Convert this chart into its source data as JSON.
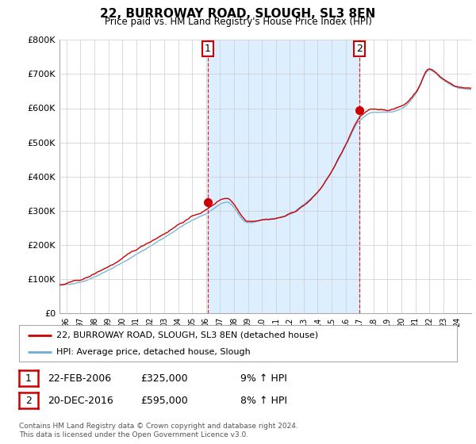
{
  "title": "22, BURROWAY ROAD, SLOUGH, SL3 8EN",
  "subtitle": "Price paid vs. HM Land Registry's House Price Index (HPI)",
  "ylabel_ticks": [
    "£0",
    "£100K",
    "£200K",
    "£300K",
    "£400K",
    "£500K",
    "£600K",
    "£700K",
    "£800K"
  ],
  "ylim": [
    0,
    800000
  ],
  "xlim_start": 1995.5,
  "xlim_end": 2025.0,
  "hpi_color": "#6baed6",
  "price_color": "#cc0000",
  "fill_color": "#ddeeff",
  "marker1_x": 2006.12,
  "marker1_y": 325000,
  "marker2_x": 2016.97,
  "marker2_y": 595000,
  "legend_line1": "22, BURROWAY ROAD, SLOUGH, SL3 8EN (detached house)",
  "legend_line2": "HPI: Average price, detached house, Slough",
  "annotation1_date": "22-FEB-2006",
  "annotation1_price": "£325,000",
  "annotation1_hpi": "9% ↑ HPI",
  "annotation2_date": "20-DEC-2016",
  "annotation2_price": "£595,000",
  "annotation2_hpi": "8% ↑ HPI",
  "footer": "Contains HM Land Registry data © Crown copyright and database right 2024.\nThis data is licensed under the Open Government Licence v3.0.",
  "background_color": "#ffffff",
  "grid_color": "#cccccc"
}
